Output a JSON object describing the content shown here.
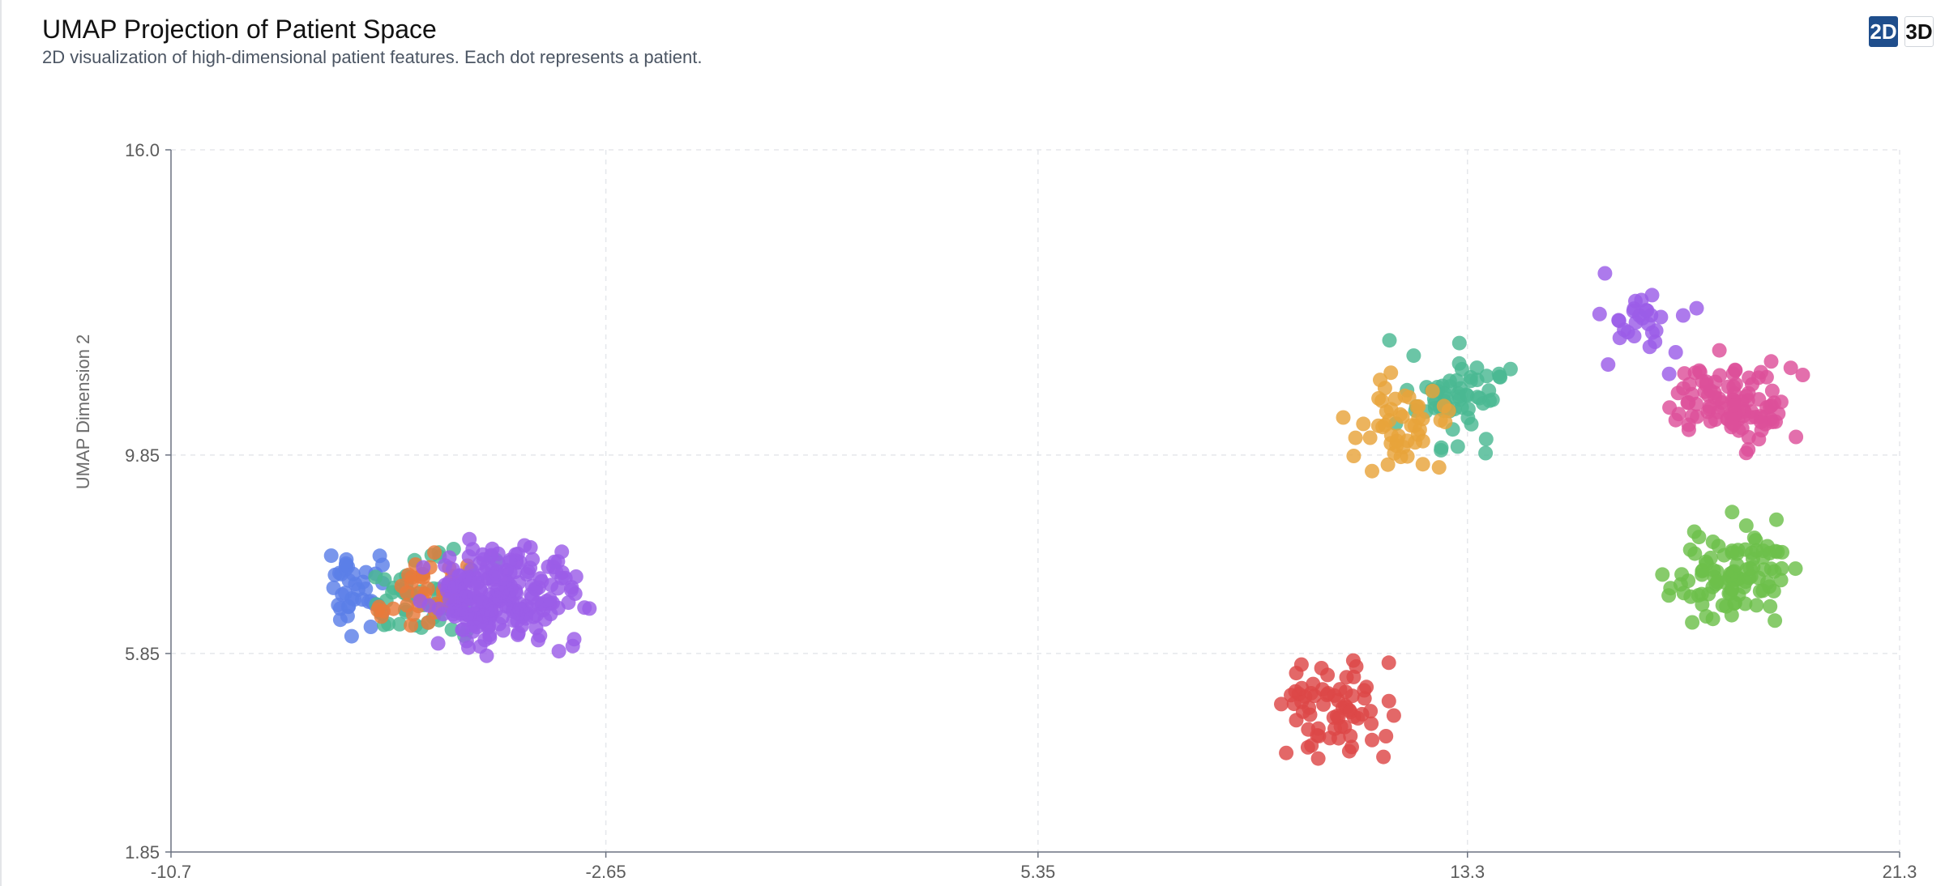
{
  "header": {
    "title": "UMAP Projection of Patient Space",
    "subtitle": "2D visualization of high-dimensional patient features. Each dot represents a patient."
  },
  "view_toggle": {
    "options": [
      {
        "label": "2D",
        "active": true
      },
      {
        "label": "3D",
        "active": false
      }
    ]
  },
  "chart_data": {
    "type": "scatter",
    "xlabel": "",
    "ylabel": "UMAP Dimension 2",
    "xlim": [
      -10.7,
      21.3
    ],
    "ylim": [
      1.85,
      16.0
    ],
    "xticks": [
      "-10.7",
      "-2.65",
      "5.35",
      "13.3",
      "21.3"
    ],
    "yticks": [
      "1.85",
      "5.85",
      "9.85",
      "16.0"
    ],
    "xtick_values": [
      -10.7,
      -2.65,
      5.35,
      13.3,
      21.3
    ],
    "ytick_values": [
      1.85,
      5.85,
      9.85,
      16.0
    ],
    "grid": true,
    "series": [
      {
        "color": "#5b7fe8",
        "clusters": [
          {
            "cx": -7.2,
            "cy": 7.1,
            "sx": 1.0,
            "sy": 1.1,
            "n": 40,
            "seed": 11
          }
        ]
      },
      {
        "color": "#4bb893",
        "clusters": [
          {
            "cx": -5.9,
            "cy": 7.0,
            "sx": 1.5,
            "sy": 1.15,
            "n": 60,
            "seed": 23
          },
          {
            "cx": 13.1,
            "cy": 11.0,
            "sx": 1.3,
            "sy": 1.45,
            "n": 60,
            "seed": 37
          }
        ]
      },
      {
        "color": "#e97a3a",
        "clusters": [
          {
            "cx": -6.0,
            "cy": 7.1,
            "sx": 1.4,
            "sy": 1.1,
            "n": 40,
            "seed": 41
          }
        ]
      },
      {
        "color": "#9b5de8",
        "clusters": [
          {
            "cx": -4.6,
            "cy": 7.0,
            "sx": 1.8,
            "sy": 1.25,
            "n": 220,
            "seed": 53
          },
          {
            "cx": 16.5,
            "cy": 12.4,
            "sx": 1.4,
            "sy": 1.25,
            "n": 30,
            "seed": 61
          }
        ]
      },
      {
        "color": "#e8a33a",
        "clusters": [
          {
            "cx": 12.0,
            "cy": 10.4,
            "sx": 1.2,
            "sy": 1.3,
            "n": 50,
            "seed": 71
          }
        ]
      },
      {
        "color": "#dd4f9a",
        "clusters": [
          {
            "cx": 18.2,
            "cy": 10.8,
            "sx": 1.5,
            "sy": 1.25,
            "n": 100,
            "seed": 83
          }
        ]
      },
      {
        "color": "#6cc04a",
        "clusters": [
          {
            "cx": 18.2,
            "cy": 7.5,
            "sx": 1.45,
            "sy": 1.25,
            "n": 100,
            "seed": 97
          }
        ]
      },
      {
        "color": "#dd4747",
        "clusters": [
          {
            "cx": 10.9,
            "cy": 4.8,
            "sx": 1.45,
            "sy": 1.25,
            "n": 70,
            "seed": 101
          }
        ]
      }
    ]
  }
}
